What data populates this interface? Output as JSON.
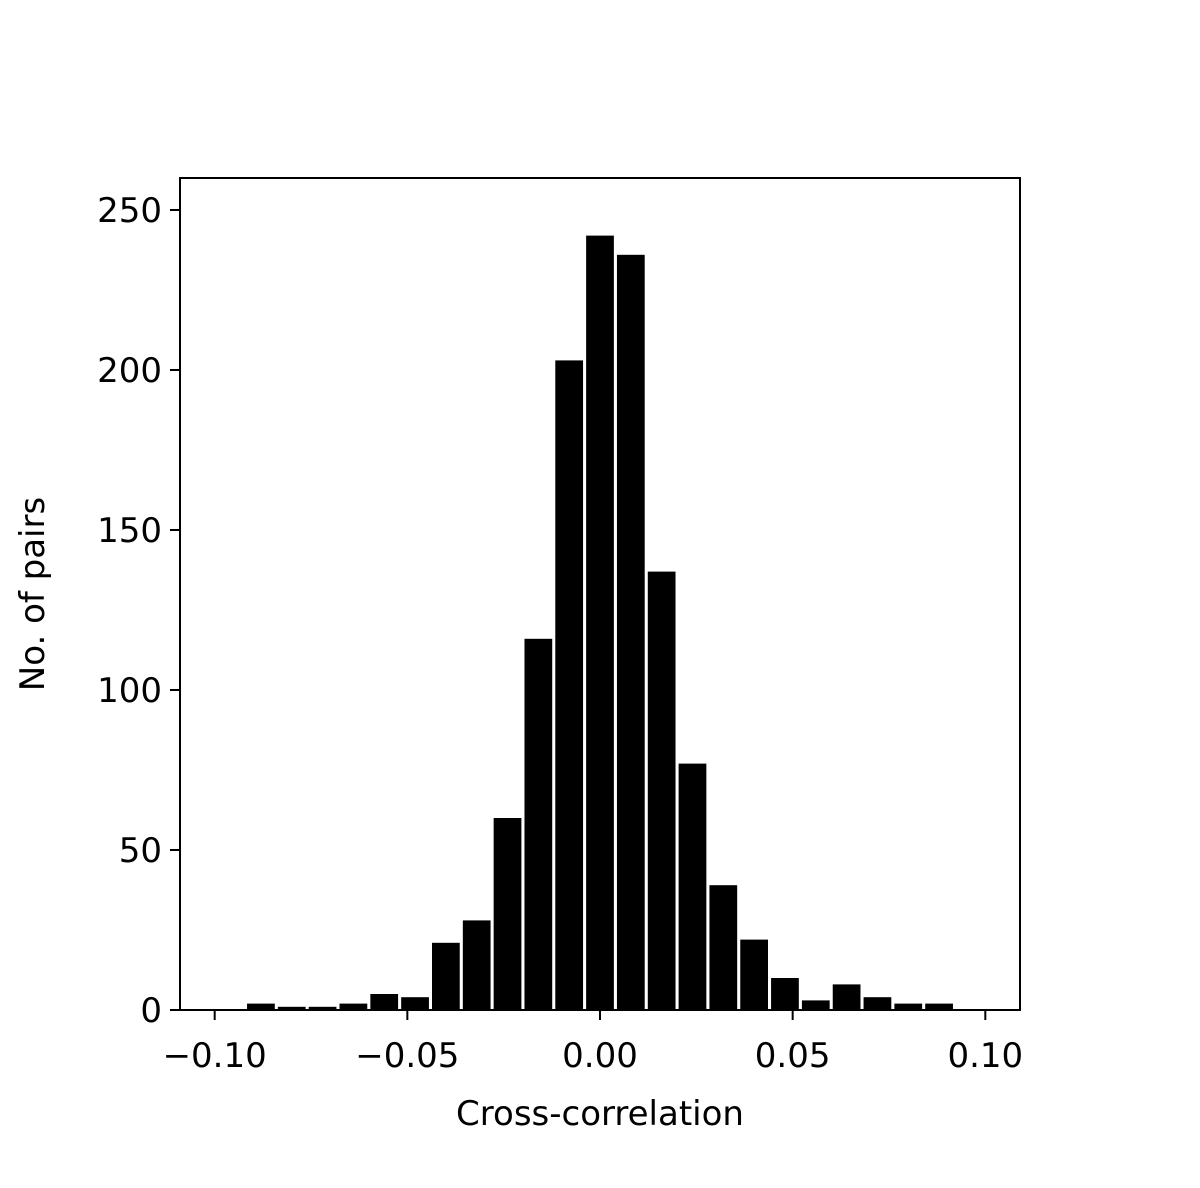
{
  "chart_data": {
    "type": "histogram",
    "xlabel": "Cross-correlation",
    "ylabel": "No. of pairs",
    "bins": [
      -0.1,
      -0.092,
      -0.084,
      -0.076,
      -0.068,
      -0.06,
      -0.052,
      -0.044,
      -0.036,
      -0.028,
      -0.02,
      -0.012,
      -0.004,
      0.004,
      0.012,
      0.02,
      0.028,
      0.036,
      0.044,
      0.052,
      0.06,
      0.068,
      0.076,
      0.084,
      0.092,
      0.1
    ],
    "values": [
      0,
      2,
      1,
      1,
      2,
      5,
      4,
      21,
      28,
      60,
      116,
      203,
      242,
      236,
      137,
      77,
      39,
      22,
      10,
      3,
      8,
      4,
      2,
      2,
      0
    ],
    "color": "#000000",
    "xlim": [
      -0.109,
      0.109
    ],
    "xticks": [
      {
        "value": -0.1,
        "label": "−0.10"
      },
      {
        "value": -0.05,
        "label": "−0.05"
      },
      {
        "value": 0,
        "label": "0.00"
      },
      {
        "value": 0.05,
        "label": "0.05"
      },
      {
        "value": 0.1,
        "label": "0.10"
      }
    ],
    "ylim": [
      0,
      260
    ],
    "yticks": [
      0,
      50,
      100,
      150,
      200,
      250
    ],
    "grid": false
  }
}
